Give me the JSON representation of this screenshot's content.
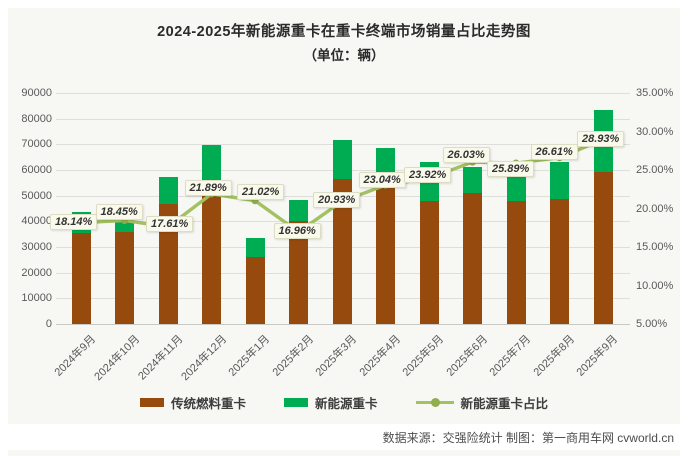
{
  "chart_data": {
    "type": "bar",
    "combo": "stacked-bar-with-line",
    "title": "2024-2025年新能源重卡在重卡终端市场销量占比走势图",
    "subtitle": "（单位：辆）",
    "categories": [
      "2024年9月",
      "2024年10月",
      "2024年11月",
      "2024年12月",
      "2025年1月",
      "2025年2月",
      "2025年3月",
      "2025年4月",
      "2025年5月",
      "2025年6月",
      "2025年7月",
      "2025年8月",
      "2025年9月"
    ],
    "series": [
      {
        "name": "传统燃料重卡",
        "type": "bar",
        "stack": "total",
        "color": "#964a0e",
        "values": [
          35600,
          35800,
          46700,
          54500,
          26000,
          40000,
          56500,
          52800,
          48000,
          51000,
          48000,
          48700,
          59200
        ]
      },
      {
        "name": "新能源重卡",
        "type": "bar",
        "stack": "total",
        "color": "#00ac52",
        "values": [
          7900,
          8100,
          10400,
          15300,
          7500,
          8200,
          15300,
          15800,
          15300,
          10200,
          12000,
          14600,
          24300
        ]
      },
      {
        "name": "新能源重卡占比",
        "type": "line",
        "axis": "right",
        "color": "#a2c161",
        "marker_color": "#8fae4e",
        "values": [
          18.14,
          18.45,
          17.61,
          21.89,
          21.02,
          16.96,
          20.93,
          23.04,
          23.92,
          26.03,
          25.89,
          26.61,
          28.93
        ],
        "labels": [
          "18.14%",
          "18.45%",
          "17.61%",
          "21.89%",
          "21.02%",
          "16.96%",
          "20.93%",
          "23.04%",
          "23.92%",
          "26.03%",
          "25.89%",
          "26.61%",
          "28.93%"
        ]
      }
    ],
    "left_axis": {
      "min": 0,
      "max": 90000,
      "step": 10000,
      "ticks": [
        "0",
        "10000",
        "20000",
        "30000",
        "40000",
        "50000",
        "60000",
        "70000",
        "80000",
        "90000"
      ]
    },
    "right_axis": {
      "min": 5,
      "max": 35,
      "step": 5,
      "ticks": [
        "5.00%",
        "10.00%",
        "15.00%",
        "20.00%",
        "25.00%",
        "30.00%",
        "35.00%"
      ]
    },
    "grid": true,
    "legend_position": "bottom"
  },
  "legend": {
    "traditional": "传统燃料重卡",
    "nev": "新能源重卡",
    "share": "新能源重卡占比"
  },
  "footer": {
    "source": "数据来源：交强险统计 制图：第一商用车网 cvworld.cn"
  },
  "colors": {
    "traditional_bar": "#964a0e",
    "nev_bar": "#00ac52",
    "share_line": "#a2c161",
    "panel_background": "#f7f7f4",
    "label_box_background": "#fafaec"
  }
}
